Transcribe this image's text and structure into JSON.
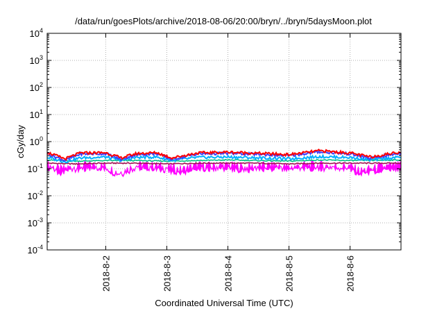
{
  "chart_data": {
    "type": "line",
    "title": "/data/run/goesPlots/archive/2018-08-06/20:00/bryn/../bryn/5daysMoon.plot",
    "xlabel": "Coordinated Universal Time (UTC)",
    "ylabel": "cGy/day",
    "x_scale": "time",
    "y_scale": "log",
    "xlim": [
      "2018-08-01T01:00",
      "2018-08-06T20:00"
    ],
    "ylim": [
      0.0001,
      10000
    ],
    "y_ticks": [
      {
        "value": 0.0001,
        "mantissa": "10",
        "exponent": "-4"
      },
      {
        "value": 0.001,
        "mantissa": "10",
        "exponent": "-3"
      },
      {
        "value": 0.01,
        "mantissa": "10",
        "exponent": "-2"
      },
      {
        "value": 0.1,
        "mantissa": "10",
        "exponent": "-1"
      },
      {
        "value": 1,
        "mantissa": "10",
        "exponent": "0"
      },
      {
        "value": 10,
        "mantissa": "10",
        "exponent": "1"
      },
      {
        "value": 100,
        "mantissa": "10",
        "exponent": "2"
      },
      {
        "value": 1000,
        "mantissa": "10",
        "exponent": "3"
      },
      {
        "value": 10000,
        "mantissa": "10",
        "exponent": "4"
      }
    ],
    "x_ticks": [
      {
        "value": "2018-08-02T00:00",
        "label": "2018-8-2"
      },
      {
        "value": "2018-08-03T00:00",
        "label": "2018-8-3"
      },
      {
        "value": "2018-08-04T00:00",
        "label": "2018-8-4"
      },
      {
        "value": "2018-08-05T00:00",
        "label": "2018-8-5"
      },
      {
        "value": "2018-08-06T00:00",
        "label": "2018-8-6"
      }
    ],
    "grid": true,
    "legend": "none",
    "series": [
      {
        "color": "#ff00ff",
        "style": "spiky band",
        "points": [
          [
            "2018-08-01T01:00",
            0.14
          ],
          [
            "2018-08-01T06:00",
            0.09
          ],
          [
            "2018-08-01T12:00",
            0.12
          ],
          [
            "2018-08-01T18:00",
            0.13
          ],
          [
            "2018-08-02T00:00",
            0.12
          ],
          [
            "2018-08-02T05:00",
            0.07
          ],
          [
            "2018-08-02T12:00",
            0.13
          ],
          [
            "2018-08-02T18:00",
            0.13
          ],
          [
            "2018-08-03T00:00",
            0.11
          ],
          [
            "2018-08-03T06:00",
            0.09
          ],
          [
            "2018-08-03T12:00",
            0.13
          ],
          [
            "2018-08-03T18:00",
            0.12
          ],
          [
            "2018-08-04T00:00",
            0.13
          ],
          [
            "2018-08-04T06:00",
            0.11
          ],
          [
            "2018-08-04T12:00",
            0.12
          ],
          [
            "2018-08-04T18:00",
            0.13
          ],
          [
            "2018-08-05T00:00",
            0.11
          ],
          [
            "2018-08-05T06:00",
            0.13
          ],
          [
            "2018-08-05T12:00",
            0.13
          ],
          [
            "2018-08-05T18:00",
            0.12
          ],
          [
            "2018-08-06T00:00",
            0.12
          ],
          [
            "2018-08-06T04:00",
            0.08
          ],
          [
            "2018-08-06T12:00",
            0.11
          ],
          [
            "2018-08-06T20:00",
            0.13
          ]
        ]
      },
      {
        "color": "#a01050",
        "style": "line",
        "points": [
          [
            "2018-08-01T01:00",
            0.16
          ],
          [
            "2018-08-01T12:00",
            0.15
          ],
          [
            "2018-08-02T00:00",
            0.16
          ],
          [
            "2018-08-02T12:00",
            0.16
          ],
          [
            "2018-08-03T00:00",
            0.15
          ],
          [
            "2018-08-03T12:00",
            0.16
          ],
          [
            "2018-08-04T00:00",
            0.16
          ],
          [
            "2018-08-04T12:00",
            0.16
          ],
          [
            "2018-08-05T00:00",
            0.15
          ],
          [
            "2018-08-05T12:00",
            0.16
          ],
          [
            "2018-08-06T00:00",
            0.16
          ],
          [
            "2018-08-06T20:00",
            0.16
          ]
        ]
      },
      {
        "color": "#00c080",
        "style": "line",
        "points": [
          [
            "2018-08-01T01:00",
            0.21
          ],
          [
            "2018-08-01T12:00",
            0.19
          ],
          [
            "2018-08-02T00:00",
            0.2
          ],
          [
            "2018-08-02T12:00",
            0.2
          ],
          [
            "2018-08-03T00:00",
            0.19
          ],
          [
            "2018-08-03T12:00",
            0.2
          ],
          [
            "2018-08-04T00:00",
            0.21
          ],
          [
            "2018-08-04T12:00",
            0.2
          ],
          [
            "2018-08-05T00:00",
            0.19
          ],
          [
            "2018-08-05T12:00",
            0.21
          ],
          [
            "2018-08-06T00:00",
            0.2
          ],
          [
            "2018-08-06T20:00",
            0.21
          ]
        ]
      },
      {
        "color": "#00b0ff",
        "style": "line",
        "points": [
          [
            "2018-08-01T01:00",
            0.26
          ],
          [
            "2018-08-01T08:00",
            0.18
          ],
          [
            "2018-08-01T14:00",
            0.25
          ],
          [
            "2018-08-02T00:00",
            0.27
          ],
          [
            "2018-08-02T06:00",
            0.2
          ],
          [
            "2018-08-02T12:00",
            0.26
          ],
          [
            "2018-08-02T20:00",
            0.27
          ],
          [
            "2018-08-03T02:00",
            0.2
          ],
          [
            "2018-08-03T12:00",
            0.26
          ],
          [
            "2018-08-04T00:00",
            0.27
          ],
          [
            "2018-08-04T12:00",
            0.25
          ],
          [
            "2018-08-05T00:00",
            0.23
          ],
          [
            "2018-08-05T12:00",
            0.28
          ],
          [
            "2018-08-06T00:00",
            0.26
          ],
          [
            "2018-08-06T08:00",
            0.21
          ],
          [
            "2018-08-06T20:00",
            0.27
          ]
        ]
      },
      {
        "color": "#4040ff",
        "style": "line",
        "points": [
          [
            "2018-08-01T01:00",
            0.36
          ],
          [
            "2018-08-01T08:00",
            0.2
          ],
          [
            "2018-08-01T14:00",
            0.35
          ],
          [
            "2018-08-02T00:00",
            0.36
          ],
          [
            "2018-08-02T06:00",
            0.22
          ],
          [
            "2018-08-02T12:00",
            0.33
          ],
          [
            "2018-08-02T20:00",
            0.36
          ],
          [
            "2018-08-03T02:00",
            0.22
          ],
          [
            "2018-08-03T12:00",
            0.35
          ],
          [
            "2018-08-04T00:00",
            0.37
          ],
          [
            "2018-08-04T12:00",
            0.34
          ],
          [
            "2018-08-05T00:00",
            0.3
          ],
          [
            "2018-08-05T12:00",
            0.42
          ],
          [
            "2018-08-06T00:00",
            0.35
          ],
          [
            "2018-08-06T08:00",
            0.24
          ],
          [
            "2018-08-06T20:00",
            0.38
          ]
        ]
      },
      {
        "color": "#ff0000",
        "style": "line",
        "points": [
          [
            "2018-08-01T01:00",
            0.4
          ],
          [
            "2018-08-01T08:00",
            0.23
          ],
          [
            "2018-08-01T14:00",
            0.38
          ],
          [
            "2018-08-02T00:00",
            0.39
          ],
          [
            "2018-08-02T06:00",
            0.25
          ],
          [
            "2018-08-02T12:00",
            0.36
          ],
          [
            "2018-08-02T20:00",
            0.39
          ],
          [
            "2018-08-03T02:00",
            0.25
          ],
          [
            "2018-08-03T12:00",
            0.38
          ],
          [
            "2018-08-04T00:00",
            0.41
          ],
          [
            "2018-08-04T12:00",
            0.37
          ],
          [
            "2018-08-05T00:00",
            0.33
          ],
          [
            "2018-08-05T12:00",
            0.46
          ],
          [
            "2018-08-06T00:00",
            0.38
          ],
          [
            "2018-08-06T08:00",
            0.27
          ],
          [
            "2018-08-06T20:00",
            0.42
          ]
        ]
      }
    ]
  }
}
